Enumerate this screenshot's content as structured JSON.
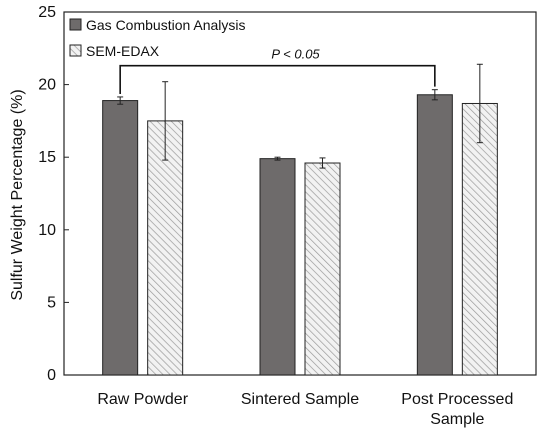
{
  "chart_data": {
    "type": "bar",
    "title": "",
    "xlabel": "",
    "ylabel": "Sulfur Weight Percentage (%)",
    "ylim": [
      0,
      25
    ],
    "yticks": [
      0,
      5,
      10,
      15,
      20,
      25
    ],
    "grid": false,
    "legend_position": "top-left",
    "categories": [
      [
        "Raw Powder"
      ],
      [
        "Sintered Sample"
      ],
      [
        "Post Processed",
        "Sample"
      ]
    ],
    "series": [
      {
        "name": "Gas Combustion Analysis",
        "fill": "solid",
        "color": "#6e6b6b",
        "values": [
          18.9,
          14.9,
          19.3
        ],
        "errors": [
          0.25,
          0.1,
          0.35
        ]
      },
      {
        "name": "SEM-EDAX",
        "fill": "hatched",
        "color": "#c8c8c8",
        "values": [
          17.5,
          14.6,
          18.7
        ],
        "errors": [
          2.7,
          0.35,
          2.7
        ]
      }
    ],
    "annotations": [
      {
        "type": "significance-bracket",
        "text": "P < 0.05",
        "from_category": 0,
        "to_category": 2,
        "series": 0,
        "level": 21.3
      }
    ]
  }
}
